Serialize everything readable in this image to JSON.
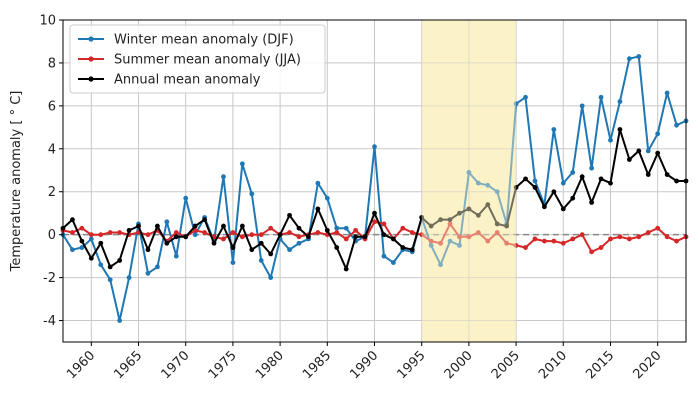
{
  "chart_data": {
    "type": "line",
    "title": "",
    "xlabel": "",
    "ylabel": "Temperature anomaly [ ° C]",
    "xlim": [
      1957,
      2023
    ],
    "ylim": [
      -5,
      10
    ],
    "x_ticks": [
      1960,
      1965,
      1970,
      1975,
      1980,
      1985,
      1990,
      1995,
      2000,
      2005,
      2010,
      2015,
      2020
    ],
    "y_ticks": [
      -4,
      -2,
      0,
      2,
      4,
      6,
      8,
      10
    ],
    "grid": true,
    "legend_position": "top-left",
    "highlight_span": {
      "from": 1995,
      "to": 2005,
      "color": "#fbf2c8"
    },
    "reference_line": {
      "y": 0,
      "style": "dashed",
      "color": "#888888"
    },
    "x": [
      1957,
      1958,
      1959,
      1960,
      1961,
      1962,
      1963,
      1964,
      1965,
      1966,
      1967,
      1968,
      1969,
      1970,
      1971,
      1972,
      1973,
      1974,
      1975,
      1976,
      1977,
      1978,
      1979,
      1980,
      1981,
      1982,
      1983,
      1984,
      1985,
      1986,
      1987,
      1988,
      1989,
      1990,
      1991,
      1992,
      1993,
      1994,
      1995,
      1996,
      1997,
      1998,
      1999,
      2000,
      2001,
      2002,
      2003,
      2004,
      2005,
      2006,
      2007,
      2008,
      2009,
      2010,
      2011,
      2012,
      2013,
      2014,
      2015,
      2016,
      2017,
      2018,
      2019,
      2020,
      2021,
      2022,
      2023
    ],
    "series": [
      {
        "name": "Winter mean anomaly (DJF)",
        "color": "#1f77b4",
        "values": [
          0.0,
          -0.7,
          -0.6,
          -0.2,
          -1.4,
          -2.1,
          -4.0,
          -2.0,
          0.5,
          -1.8,
          -1.5,
          0.6,
          -1.0,
          1.7,
          0.0,
          0.8,
          -0.3,
          2.7,
          -1.3,
          3.3,
          1.9,
          -1.2,
          -2.0,
          -0.2,
          -0.7,
          -0.4,
          -0.2,
          2.4,
          1.7,
          0.3,
          0.3,
          -0.3,
          -0.1,
          4.1,
          -1.0,
          -1.3,
          -0.7,
          -0.8,
          0.8,
          -0.5,
          -1.4,
          -0.3,
          -0.5,
          2.9,
          2.4,
          2.3,
          2.0,
          0.5,
          6.1,
          6.4,
          2.5,
          1.4,
          4.9,
          2.4,
          2.9,
          6.0,
          3.1,
          6.4,
          4.4,
          6.2,
          8.2,
          8.3,
          3.9,
          4.7,
          6.6,
          5.1,
          5.3
        ]
      },
      {
        "name": "Summer mean anomaly (JJA)",
        "color": "#d62728",
        "values": [
          0.2,
          0.1,
          0.3,
          0.0,
          0.0,
          0.1,
          0.1,
          0.0,
          0.1,
          0.0,
          0.2,
          -0.3,
          0.1,
          -0.1,
          0.2,
          0.1,
          -0.1,
          -0.2,
          0.1,
          -0.1,
          0.0,
          0.0,
          0.3,
          0.0,
          0.1,
          -0.1,
          0.0,
          0.1,
          0.0,
          0.1,
          -0.2,
          0.2,
          -0.2,
          0.6,
          0.5,
          -0.2,
          0.3,
          0.1,
          0.0,
          -0.3,
          -0.4,
          0.5,
          -0.1,
          -0.1,
          0.1,
          -0.3,
          0.1,
          -0.4,
          -0.5,
          -0.6,
          -0.2,
          -0.3,
          -0.3,
          -0.4,
          -0.2,
          0.0,
          -0.8,
          -0.6,
          -0.2,
          -0.1,
          -0.2,
          -0.1,
          0.1,
          0.3,
          -0.1,
          -0.3,
          -0.1
        ]
      },
      {
        "name": "Annual mean anomaly",
        "color": "#000000",
        "values": [
          0.3,
          0.7,
          -0.3,
          -1.1,
          -0.4,
          -1.5,
          -1.2,
          0.2,
          0.4,
          -0.7,
          0.4,
          -0.4,
          -0.1,
          -0.1,
          0.4,
          0.7,
          -0.4,
          0.4,
          -0.6,
          0.4,
          -0.7,
          -0.4,
          -0.9,
          0.0,
          0.9,
          0.3,
          -0.1,
          1.2,
          0.2,
          -0.6,
          -1.6,
          -0.1,
          -0.1,
          1.0,
          0.0,
          -0.2,
          -0.6,
          -0.7,
          0.8,
          0.4,
          0.7,
          0.7,
          1.0,
          1.2,
          0.9,
          1.4,
          0.5,
          0.4,
          2.2,
          2.6,
          2.2,
          1.3,
          2.0,
          1.2,
          1.7,
          2.7,
          1.5,
          2.6,
          2.4,
          4.9,
          3.5,
          3.9,
          2.8,
          3.8,
          2.8,
          2.5,
          2.5
        ]
      }
    ]
  }
}
